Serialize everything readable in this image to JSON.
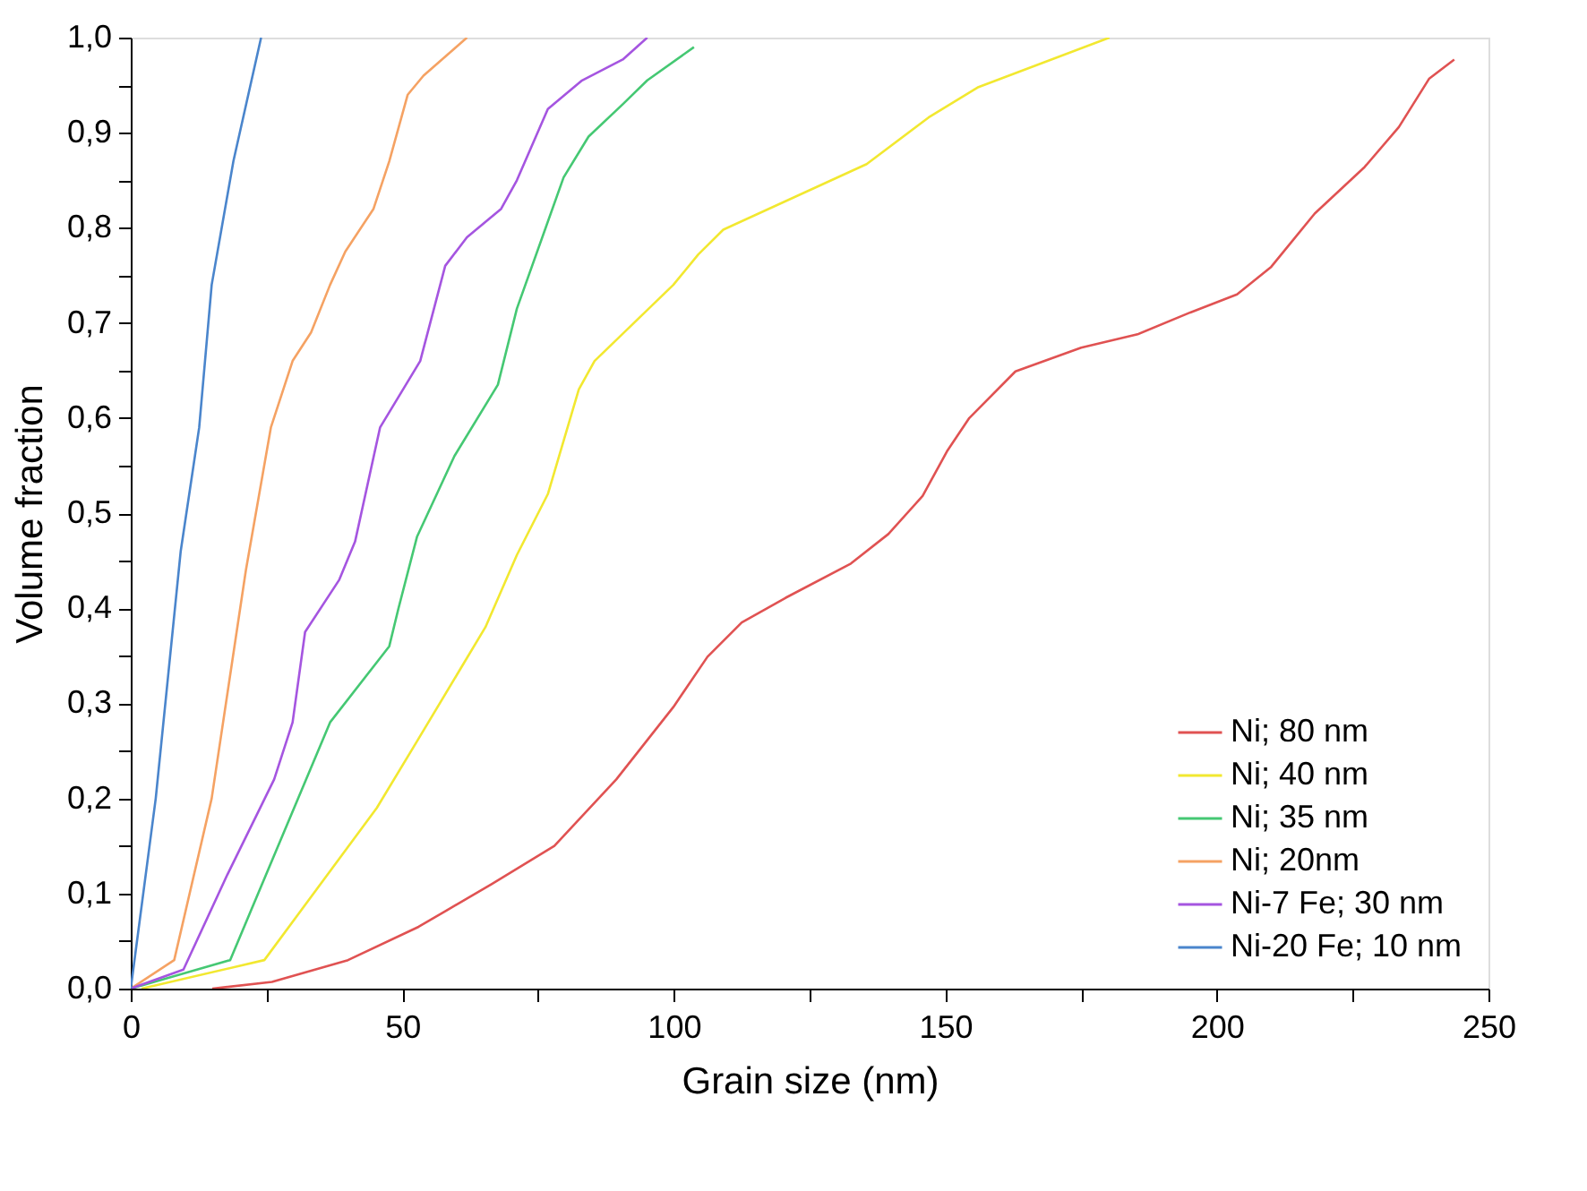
{
  "chart_data": {
    "type": "line",
    "xlabel": "Grain size (nm)",
    "ylabel": "Volume fraction",
    "xlim": [
      0,
      250
    ],
    "ylim": [
      0,
      1.0
    ],
    "xticks": [
      0,
      {
        "value": 25,
        "label": null
      },
      50,
      {
        "value": 75,
        "label": null
      },
      100,
      {
        "value": 125,
        "label": null
      },
      150,
      {
        "value": 175,
        "label": null
      },
      200,
      {
        "value": 225,
        "label": null
      },
      250
    ],
    "yticks": [
      {
        "value": 0,
        "label": "0,0"
      },
      {
        "value": 0.05,
        "label": null
      },
      {
        "value": 0.1,
        "label": "0,1"
      },
      {
        "value": 0.15,
        "label": null
      },
      {
        "value": 0.2,
        "label": "0,2"
      },
      {
        "value": 0.25,
        "label": null
      },
      {
        "value": 0.3,
        "label": "0,3"
      },
      {
        "value": 0.35,
        "label": null
      },
      {
        "value": 0.4,
        "label": "0,4"
      },
      {
        "value": 0.45,
        "label": null
      },
      {
        "value": 0.5,
        "label": "0,5"
      },
      {
        "value": 0.55,
        "label": null
      },
      {
        "value": 0.6,
        "label": "0,6"
      },
      {
        "value": 0.65,
        "label": null
      },
      {
        "value": 0.7,
        "label": "0,7"
      },
      {
        "value": 0.75,
        "label": null
      },
      {
        "value": 0.8,
        "label": "0,8"
      },
      {
        "value": 0.85,
        "label": null
      },
      {
        "value": 0.9,
        "label": "0,9"
      },
      {
        "value": 0.95,
        "label": null
      },
      {
        "value": 1.0,
        "label": "1,0"
      }
    ],
    "grid": false,
    "legend": "bottom right",
    "marker": "none",
    "line_style": "solid",
    "series": [
      {
        "name": "Ni; 80 nm",
        "color": "#e05252",
        "x": [
          15,
          26,
          40,
          53,
          66.5,
          78,
          89.4,
          99.9,
          106.2,
          112.5,
          120.6,
          132.6,
          139.5,
          145.8,
          150.4,
          154.4,
          162.9,
          175,
          185.4,
          195.1,
          203.7,
          210,
          218,
          227.2,
          233.5,
          239.1,
          243.7
        ],
        "values": [
          0,
          0.007,
          0.03,
          0.065,
          0.11,
          0.15,
          0.22,
          0.296,
          0.349,
          0.385,
          0.411,
          0.447,
          0.478,
          0.518,
          0.566,
          0.6,
          0.649,
          0.674,
          0.688,
          0.711,
          0.73,
          0.759,
          0.815,
          0.864,
          0.906,
          0.957,
          0.977
        ]
      },
      {
        "name": "Ni; 40 nm",
        "color": "#f2e830",
        "x": [
          2,
          24.6,
          45.3,
          52.7,
          65.3,
          71.1,
          76.8,
          82.5,
          85.4,
          99.9,
          104.5,
          109.1,
          135.5,
          146.9,
          156.1,
          180.2
        ],
        "values": [
          0,
          0.03,
          0.19,
          0.26,
          0.38,
          0.456,
          0.52,
          0.63,
          0.66,
          0.74,
          0.772,
          0.798,
          0.867,
          0.916,
          0.948,
          1.0
        ]
      },
      {
        "name": "Ni; 35 nm",
        "color": "#45c873",
        "x": [
          0,
          18.3,
          36.7,
          47.6,
          49.3,
          52.7,
          59.6,
          67.6,
          71.1,
          79.7,
          84.3,
          90.6,
          95.1,
          103.7
        ],
        "values": [
          0,
          0.03,
          0.28,
          0.36,
          0.4,
          0.475,
          0.56,
          0.635,
          0.715,
          0.853,
          0.896,
          0.93,
          0.955,
          0.99
        ]
      },
      {
        "name": "Ni; 20nm",
        "color": "#f5a263",
        "x": [
          0,
          8,
          14.9,
          21.2,
          25.8,
          29.8,
          33.2,
          36.7,
          39.5,
          44.7,
          47.6,
          51,
          53.9,
          61.9
        ],
        "values": [
          0,
          0.03,
          0.2,
          0.44,
          0.59,
          0.66,
          0.69,
          0.74,
          0.775,
          0.82,
          0.87,
          0.94,
          0.96,
          1.0
        ]
      },
      {
        "name": "Ni-7 Fe; 30 nm",
        "color": "#a555e0",
        "x": [
          0,
          9.7,
          17.8,
          26.4,
          29.8,
          32.1,
          38.4,
          41.3,
          45.9,
          53.3,
          57.9,
          61.9,
          68.2,
          71.1,
          76.8,
          83.1,
          90.6,
          95.1
        ],
        "values": [
          0,
          0.02,
          0.12,
          0.22,
          0.28,
          0.375,
          0.43,
          0.47,
          0.59,
          0.66,
          0.76,
          0.79,
          0.82,
          0.85,
          0.925,
          0.955,
          0.977,
          1.0
        ]
      },
      {
        "name": "Ni-20 Fe; 10 nm",
        "color": "#4a85cc",
        "x": [
          0,
          4.6,
          9.2,
          12.6,
          14.9,
          18.9,
          24
        ],
        "values": [
          0,
          0.2,
          0.46,
          0.59,
          0.74,
          0.87,
          1.0
        ]
      }
    ]
  }
}
